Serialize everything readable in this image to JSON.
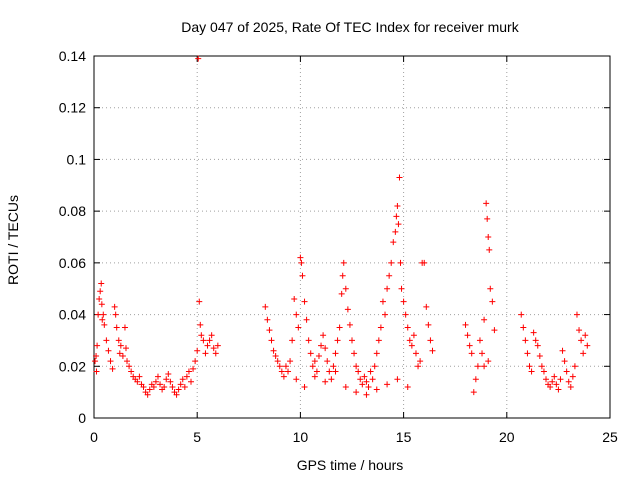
{
  "chart_data": {
    "type": "scatter",
    "title": "Day 047 of 2025, Rate Of TEC Index for receiver murk",
    "xlabel": "GPS time / hours",
    "ylabel": "ROTI / TECUs",
    "xlim": [
      0,
      25
    ],
    "ylim": [
      0,
      0.14
    ],
    "xticks": [
      0,
      5,
      10,
      15,
      20,
      25
    ],
    "yticks": [
      0,
      0.02,
      0.04,
      0.06,
      0.08,
      0.1,
      0.12,
      0.14
    ],
    "xtick_labels": [
      "0",
      "5",
      "10",
      "15",
      "20",
      "25"
    ],
    "ytick_labels": [
      "0",
      "0.02",
      "0.04",
      "0.06",
      "0.08",
      "0.1",
      "0.12",
      "0.14"
    ],
    "grid": true,
    "marker": "plus",
    "color": "#ff0000",
    "series": [
      {
        "points": [
          [
            0.05,
            0.022
          ],
          [
            0.1,
            0.024
          ],
          [
            0.12,
            0.018
          ],
          [
            0.15,
            0.028
          ],
          [
            0.2,
            0.04
          ],
          [
            0.25,
            0.046
          ],
          [
            0.3,
            0.049
          ],
          [
            0.35,
            0.052
          ],
          [
            0.38,
            0.044
          ],
          [
            0.4,
            0.038
          ],
          [
            0.45,
            0.04
          ],
          [
            0.5,
            0.036
          ],
          [
            0.6,
            0.03
          ],
          [
            0.7,
            0.026
          ],
          [
            0.8,
            0.022
          ],
          [
            0.9,
            0.019
          ],
          [
            1.0,
            0.043
          ],
          [
            1.05,
            0.04
          ],
          [
            1.1,
            0.035
          ],
          [
            1.2,
            0.03
          ],
          [
            1.25,
            0.025
          ],
          [
            1.3,
            0.028
          ],
          [
            1.4,
            0.024
          ],
          [
            1.5,
            0.035
          ],
          [
            1.55,
            0.027
          ],
          [
            1.6,
            0.022
          ],
          [
            1.7,
            0.02
          ],
          [
            1.8,
            0.018
          ],
          [
            1.9,
            0.016
          ],
          [
            2.0,
            0.015
          ],
          [
            2.1,
            0.014
          ],
          [
            2.2,
            0.016
          ],
          [
            2.3,
            0.013
          ],
          [
            2.4,
            0.012
          ],
          [
            2.5,
            0.01
          ],
          [
            2.6,
            0.009
          ],
          [
            2.7,
            0.011
          ],
          [
            2.8,
            0.013
          ],
          [
            2.9,
            0.012
          ],
          [
            3.0,
            0.014
          ],
          [
            3.1,
            0.016
          ],
          [
            3.2,
            0.013
          ],
          [
            3.3,
            0.011
          ],
          [
            3.4,
            0.012
          ],
          [
            3.5,
            0.015
          ],
          [
            3.6,
            0.017
          ],
          [
            3.7,
            0.014
          ],
          [
            3.8,
            0.012
          ],
          [
            3.9,
            0.01
          ],
          [
            4.0,
            0.009
          ],
          [
            4.1,
            0.011
          ],
          [
            4.2,
            0.013
          ],
          [
            4.3,
            0.015
          ],
          [
            4.4,
            0.012
          ],
          [
            4.5,
            0.016
          ],
          [
            4.6,
            0.018
          ],
          [
            4.7,
            0.014
          ],
          [
            4.8,
            0.019
          ],
          [
            4.9,
            0.022
          ],
          [
            5.0,
            0.026
          ],
          [
            5.05,
            0.139
          ],
          [
            5.1,
            0.045
          ],
          [
            5.15,
            0.036
          ],
          [
            5.2,
            0.032
          ],
          [
            5.3,
            0.03
          ],
          [
            5.4,
            0.025
          ],
          [
            5.5,
            0.028
          ],
          [
            5.6,
            0.03
          ],
          [
            5.7,
            0.032
          ],
          [
            5.8,
            0.027
          ],
          [
            5.9,
            0.025
          ],
          [
            6.0,
            0.028
          ],
          [
            8.3,
            0.043
          ],
          [
            8.4,
            0.038
          ],
          [
            8.5,
            0.034
          ],
          [
            8.6,
            0.03
          ],
          [
            8.7,
            0.026
          ],
          [
            8.8,
            0.024
          ],
          [
            8.9,
            0.022
          ],
          [
            9.0,
            0.02
          ],
          [
            9.1,
            0.018
          ],
          [
            9.2,
            0.016
          ],
          [
            9.3,
            0.02
          ],
          [
            9.4,
            0.018
          ],
          [
            9.5,
            0.022
          ],
          [
            9.6,
            0.03
          ],
          [
            9.7,
            0.046
          ],
          [
            9.8,
            0.04
          ],
          [
            9.9,
            0.035
          ],
          [
            10.0,
            0.062
          ],
          [
            10.05,
            0.06
          ],
          [
            10.1,
            0.055
          ],
          [
            10.2,
            0.045
          ],
          [
            10.3,
            0.038
          ],
          [
            10.4,
            0.03
          ],
          [
            10.5,
            0.025
          ],
          [
            10.6,
            0.02
          ],
          [
            10.7,
            0.022
          ],
          [
            10.8,
            0.018
          ],
          [
            10.9,
            0.024
          ],
          [
            11.0,
            0.028
          ],
          [
            11.1,
            0.032
          ],
          [
            11.2,
            0.027
          ],
          [
            11.3,
            0.022
          ],
          [
            11.4,
            0.018
          ],
          [
            11.5,
            0.015
          ],
          [
            11.6,
            0.02
          ],
          [
            11.7,
            0.025
          ],
          [
            11.8,
            0.03
          ],
          [
            11.9,
            0.035
          ],
          [
            12.0,
            0.048
          ],
          [
            12.05,
            0.055
          ],
          [
            12.1,
            0.06
          ],
          [
            12.2,
            0.05
          ],
          [
            12.3,
            0.042
          ],
          [
            12.4,
            0.036
          ],
          [
            12.5,
            0.03
          ],
          [
            12.6,
            0.025
          ],
          [
            12.7,
            0.02
          ],
          [
            12.8,
            0.018
          ],
          [
            12.9,
            0.015
          ],
          [
            13.0,
            0.013
          ],
          [
            13.1,
            0.016
          ],
          [
            13.2,
            0.014
          ],
          [
            13.3,
            0.012
          ],
          [
            13.4,
            0.018
          ],
          [
            13.5,
            0.015
          ],
          [
            13.6,
            0.02
          ],
          [
            13.7,
            0.025
          ],
          [
            13.8,
            0.03
          ],
          [
            13.9,
            0.035
          ],
          [
            14.0,
            0.045
          ],
          [
            14.1,
            0.04
          ],
          [
            14.2,
            0.05
          ],
          [
            14.3,
            0.055
          ],
          [
            14.4,
            0.06
          ],
          [
            14.5,
            0.068
          ],
          [
            14.6,
            0.072
          ],
          [
            14.65,
            0.078
          ],
          [
            14.7,
            0.082
          ],
          [
            14.75,
            0.075
          ],
          [
            14.8,
            0.093
          ],
          [
            14.85,
            0.06
          ],
          [
            14.9,
            0.05
          ],
          [
            15.0,
            0.045
          ],
          [
            15.1,
            0.04
          ],
          [
            15.2,
            0.035
          ],
          [
            15.3,
            0.03
          ],
          [
            15.4,
            0.028
          ],
          [
            15.5,
            0.032
          ],
          [
            15.6,
            0.025
          ],
          [
            15.7,
            0.02
          ],
          [
            15.8,
            0.022
          ],
          [
            15.9,
            0.06
          ],
          [
            16.0,
            0.06
          ],
          [
            16.1,
            0.043
          ],
          [
            16.2,
            0.036
          ],
          [
            16.3,
            0.03
          ],
          [
            16.4,
            0.026
          ],
          [
            9.8,
            0.015
          ],
          [
            10.2,
            0.012
          ],
          [
            10.7,
            0.016
          ],
          [
            11.2,
            0.014
          ],
          [
            11.7,
            0.018
          ],
          [
            12.2,
            0.012
          ],
          [
            12.7,
            0.01
          ],
          [
            13.2,
            0.009
          ],
          [
            13.7,
            0.011
          ],
          [
            14.2,
            0.013
          ],
          [
            14.7,
            0.015
          ],
          [
            15.2,
            0.012
          ],
          [
            18.0,
            0.036
          ],
          [
            18.1,
            0.032
          ],
          [
            18.2,
            0.028
          ],
          [
            18.3,
            0.025
          ],
          [
            18.4,
            0.01
          ],
          [
            18.5,
            0.015
          ],
          [
            18.6,
            0.02
          ],
          [
            18.7,
            0.03
          ],
          [
            18.8,
            0.025
          ],
          [
            18.9,
            0.038
          ],
          [
            19.0,
            0.083
          ],
          [
            19.05,
            0.077
          ],
          [
            19.1,
            0.07
          ],
          [
            19.15,
            0.065
          ],
          [
            19.2,
            0.05
          ],
          [
            19.3,
            0.045
          ],
          [
            19.4,
            0.034
          ],
          [
            18.9,
            0.02
          ],
          [
            19.1,
            0.022
          ],
          [
            20.7,
            0.04
          ],
          [
            20.8,
            0.035
          ],
          [
            20.9,
            0.03
          ],
          [
            21.0,
            0.025
          ],
          [
            21.1,
            0.02
          ],
          [
            21.2,
            0.018
          ],
          [
            21.3,
            0.033
          ],
          [
            21.4,
            0.03
          ],
          [
            21.5,
            0.028
          ],
          [
            21.6,
            0.024
          ],
          [
            21.7,
            0.02
          ],
          [
            21.8,
            0.018
          ],
          [
            21.9,
            0.015
          ],
          [
            22.0,
            0.013
          ],
          [
            22.1,
            0.012
          ],
          [
            22.2,
            0.014
          ],
          [
            22.3,
            0.016
          ],
          [
            22.4,
            0.013
          ],
          [
            22.5,
            0.011
          ],
          [
            22.6,
            0.015
          ],
          [
            22.7,
            0.026
          ],
          [
            22.8,
            0.022
          ],
          [
            22.9,
            0.018
          ],
          [
            23.0,
            0.014
          ],
          [
            23.1,
            0.012
          ],
          [
            23.2,
            0.016
          ],
          [
            23.3,
            0.02
          ],
          [
            23.4,
            0.04
          ],
          [
            23.5,
            0.034
          ],
          [
            23.6,
            0.03
          ],
          [
            23.7,
            0.025
          ],
          [
            23.8,
            0.032
          ],
          [
            23.9,
            0.028
          ]
        ]
      }
    ]
  }
}
